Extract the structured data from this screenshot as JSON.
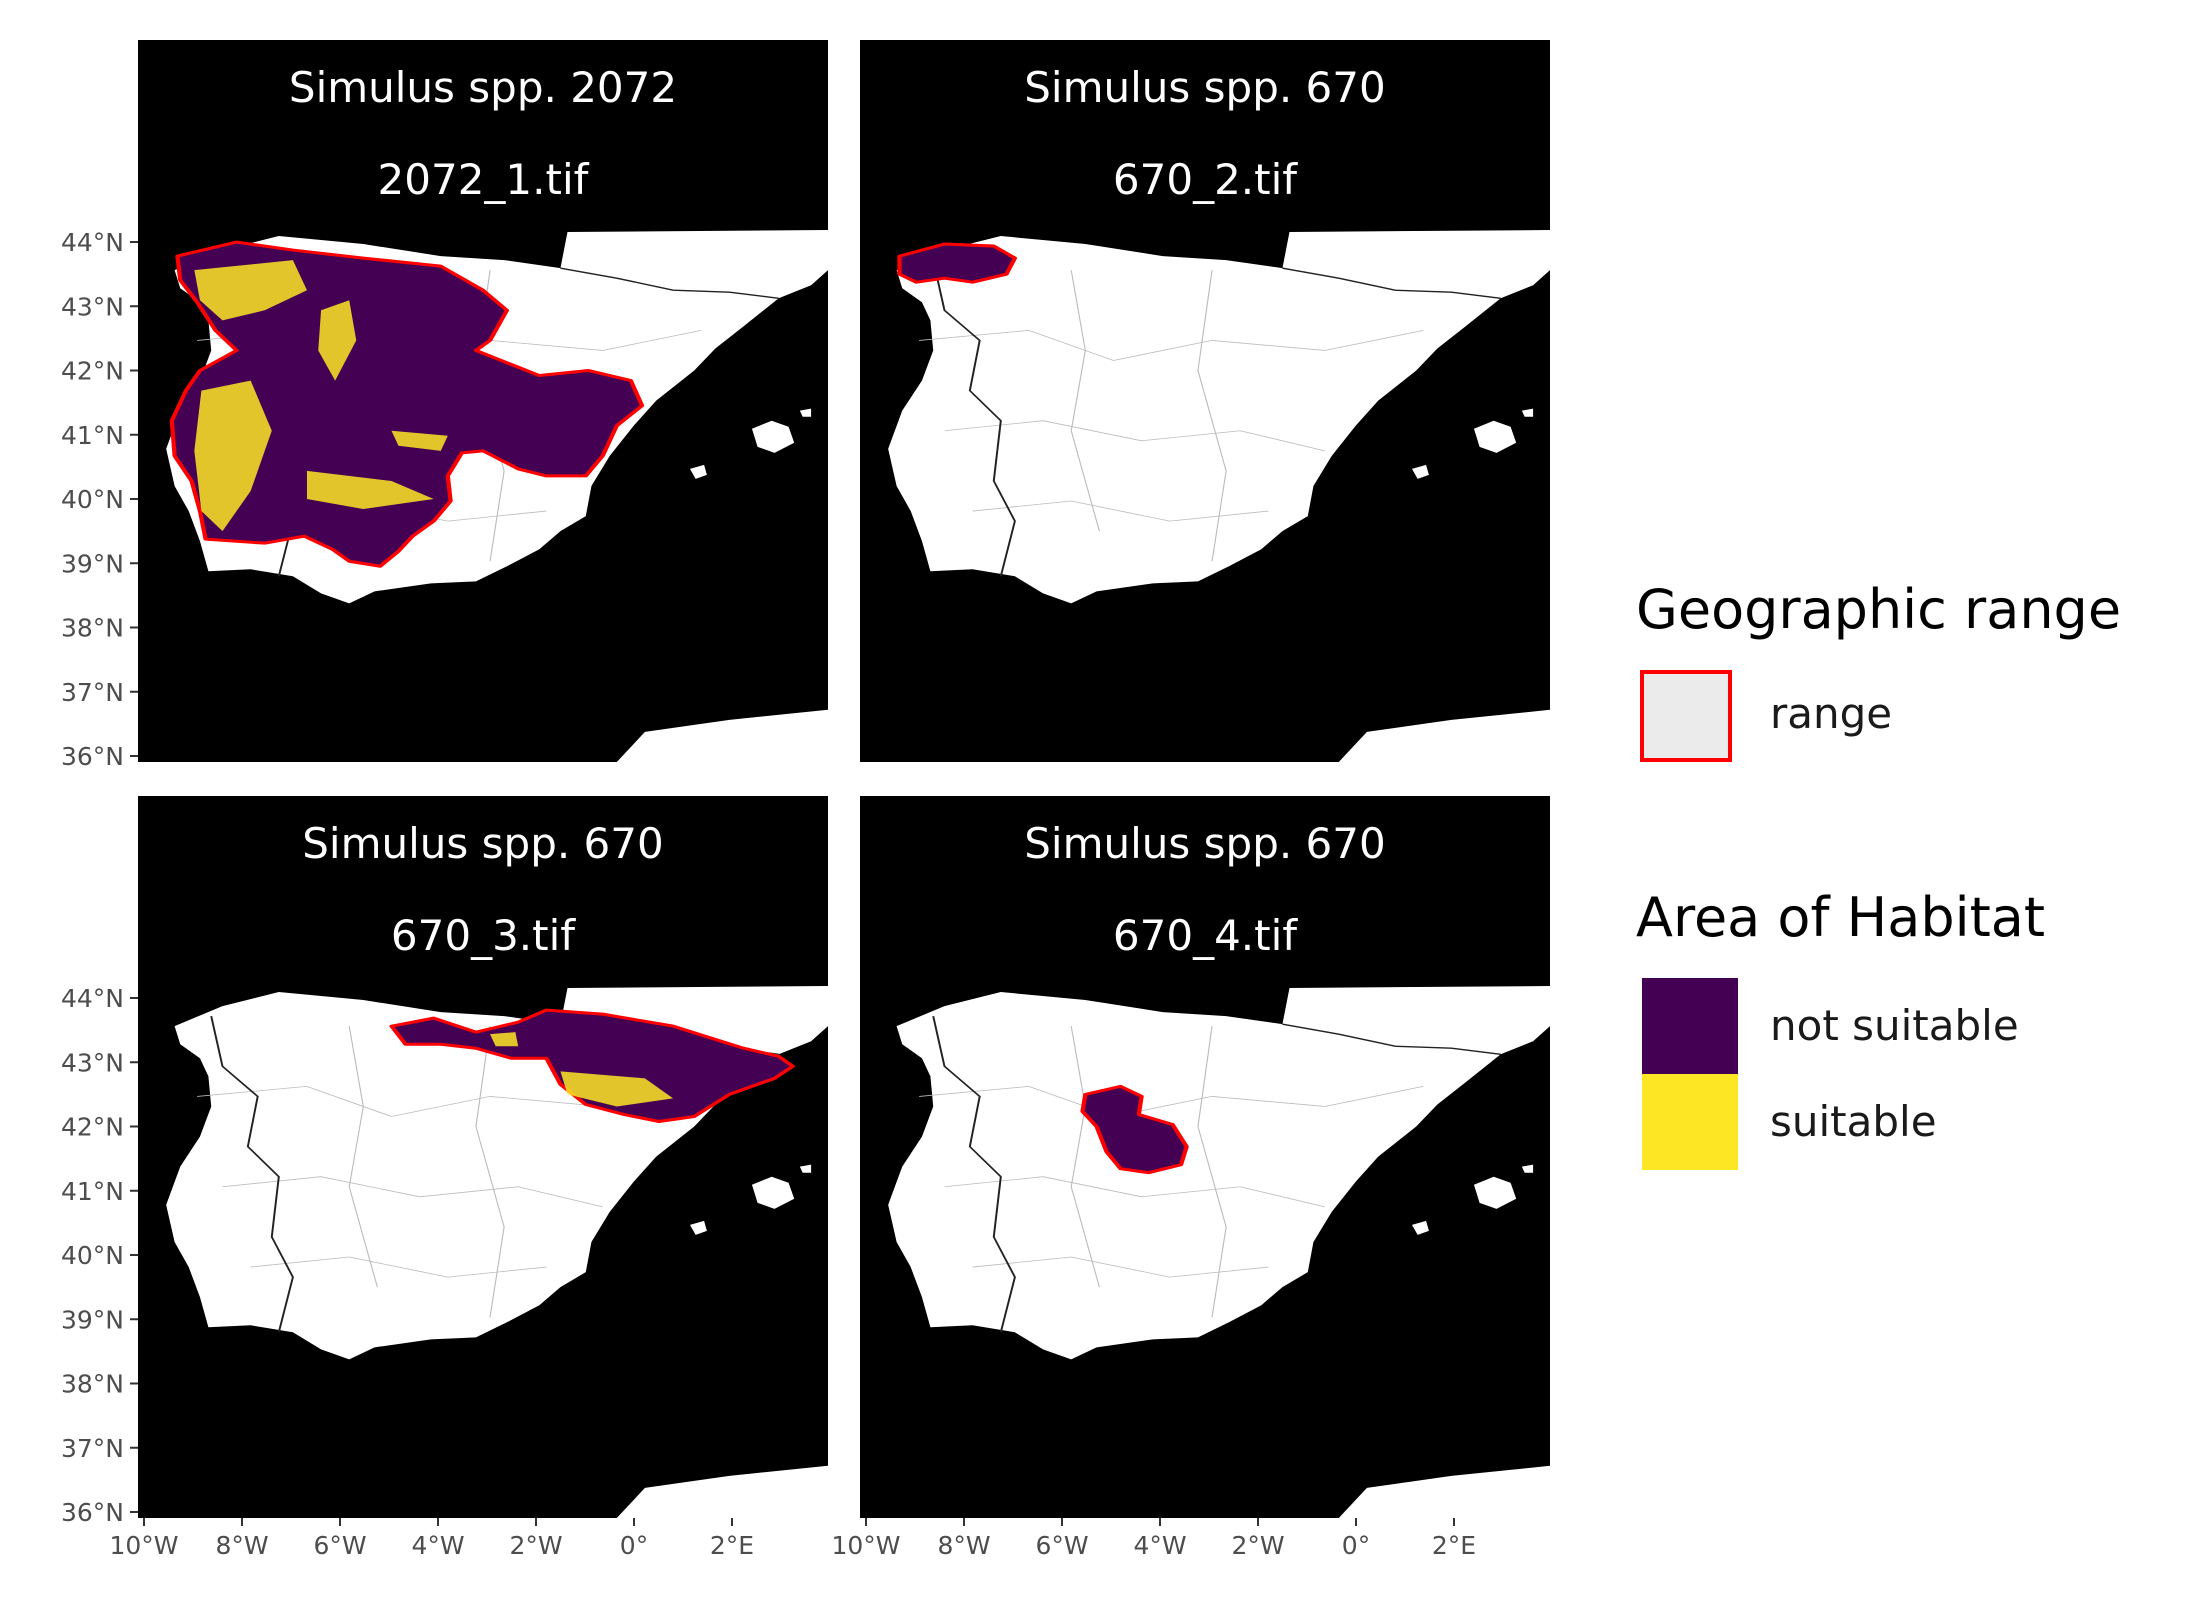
{
  "colors": {
    "sea": "#000000",
    "land": "#ffffff",
    "not_suitable": "#440154",
    "suitable": "#FDE725",
    "range_outline": "#FF0000",
    "range_fill": "#EBEBEB",
    "strip_background": "#000000",
    "strip_text": "#FFFFFF"
  },
  "panels": [
    {
      "species": "Simulus spp. 2072",
      "file": "2072_1.tif"
    },
    {
      "species": "Simulus spp. 670",
      "file": "670_2.tif"
    },
    {
      "species": "Simulus spp. 670",
      "file": "670_3.tif"
    },
    {
      "species": "Simulus spp. 670",
      "file": "670_4.tif"
    }
  ],
  "axes": {
    "lat_ticks": [
      "44°N",
      "43°N",
      "42°N",
      "41°N",
      "40°N",
      "39°N",
      "38°N",
      "37°N",
      "36°N"
    ],
    "lon_ticks": [
      "10°W",
      "8°W",
      "6°W",
      "4°W",
      "2°W",
      "0°",
      "2°E"
    ]
  },
  "legend": {
    "range_title": "Geographic range",
    "range_label": "range",
    "aoh_title": "Area of Habitat",
    "aoh_items": [
      {
        "label": "not suitable",
        "color": "#440154"
      },
      {
        "label": "suitable",
        "color": "#FDE725"
      }
    ]
  }
}
